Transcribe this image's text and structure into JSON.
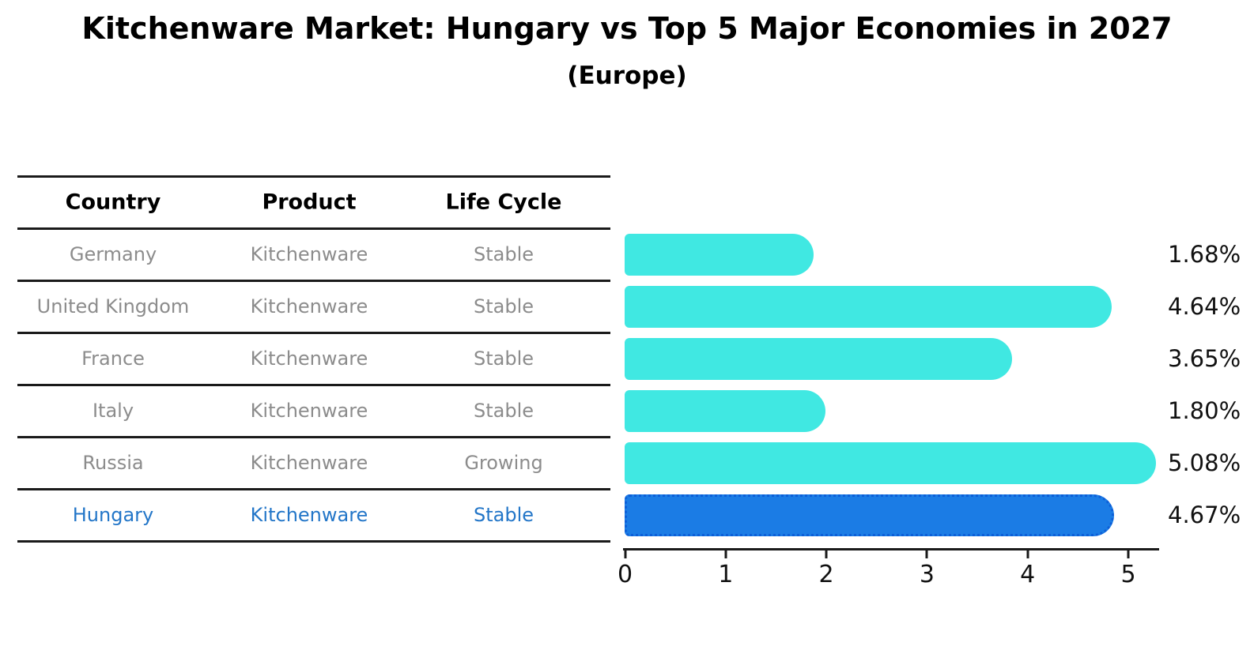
{
  "title": "Kitchenware Market: Hungary vs Top 5 Major Economies in 2027",
  "subtitle": "(Europe)",
  "table": {
    "headers": [
      "Country",
      "Product",
      "Life Cycle"
    ],
    "rows": [
      {
        "country": "Germany",
        "product": "Kitchenware",
        "life_cycle": "Stable",
        "highlighted": false
      },
      {
        "country": "United Kingdom",
        "product": "Kitchenware",
        "life_cycle": "Stable",
        "highlighted": false
      },
      {
        "country": "France",
        "product": "Kitchenware",
        "life_cycle": "Stable",
        "highlighted": false
      },
      {
        "country": "Italy",
        "product": "Kitchenware",
        "life_cycle": "Stable",
        "highlighted": false
      },
      {
        "country": "Russia",
        "product": "Kitchenware",
        "life_cycle": "Growing",
        "highlighted": false
      },
      {
        "country": "Hungary",
        "product": "Kitchenware",
        "life_cycle": "Stable",
        "highlighted": true
      }
    ]
  },
  "chart_data": {
    "type": "bar",
    "orientation": "horizontal",
    "title": "Kitchenware Market: Hungary vs Top 5 Major Economies in 2027 (Europe)",
    "categories": [
      "Germany",
      "United Kingdom",
      "France",
      "Italy",
      "Russia",
      "Hungary"
    ],
    "values": [
      1.68,
      4.64,
      3.65,
      1.8,
      5.08,
      4.67
    ],
    "value_labels": [
      "1.68%",
      "4.64%",
      "3.65%",
      "1.80%",
      "5.08%",
      "4.67%"
    ],
    "xlabel": "",
    "ylabel": "",
    "xlim": [
      0,
      5.3
    ],
    "xticks": [
      "0",
      "1",
      "2",
      "3",
      "4",
      "5"
    ],
    "grid": false,
    "legend": false,
    "highlight_category": "Hungary",
    "colors": {
      "bar": "#40e8e2",
      "highlight_bar": "#1b7ce5",
      "highlight_border": "#0d5fd8",
      "highlight_text": "#2376c8",
      "row_text": "#8c8c8c",
      "axis": "#1a1a1a"
    }
  }
}
